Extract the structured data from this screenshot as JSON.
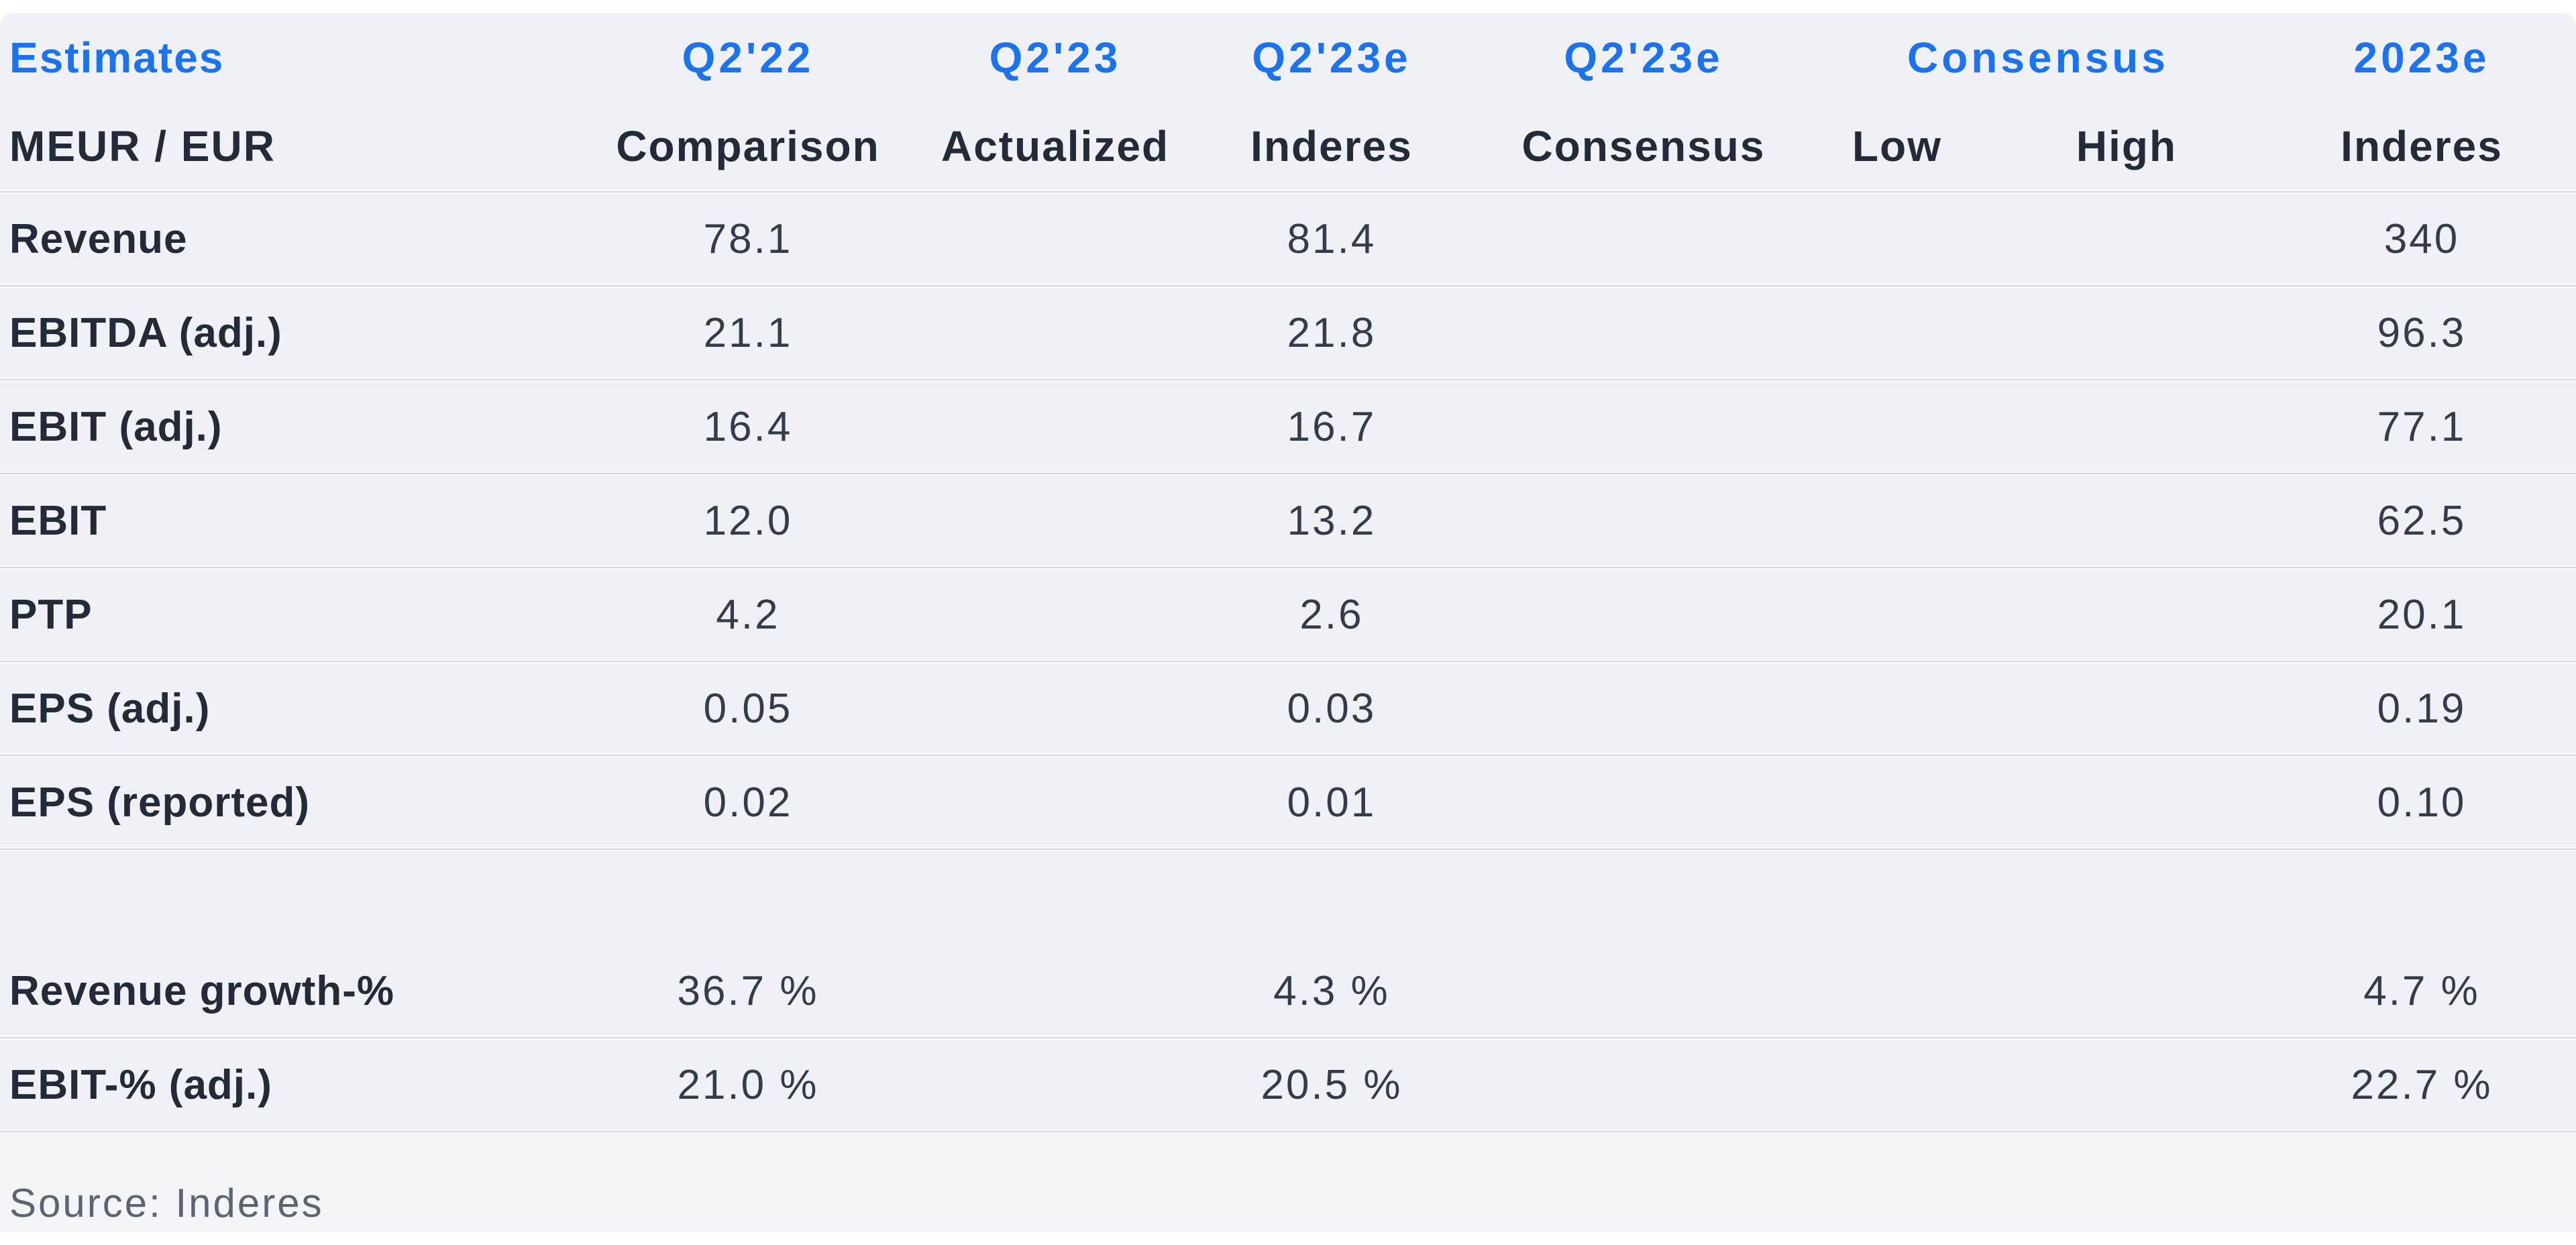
{
  "colors": {
    "accent_blue": "#1a74f2",
    "text_dark": "#232a38",
    "text_value": "#343c4a",
    "text_source": "#5c6470",
    "panel_bg": "#eff1f6",
    "divider_line": "#d2d6e0"
  },
  "header": {
    "title": "Estimates",
    "unit_label": "MEUR / EUR",
    "consensus_group_label": "Consensus",
    "top": [
      "Q2'22",
      "Q2'23",
      "Q2'23e",
      "Q2'23e",
      "2023e"
    ],
    "bottom": [
      "Comparison",
      "Actualized",
      "Inderes",
      "Consensus",
      "Low",
      "High",
      "Inderes"
    ]
  },
  "table": {
    "rows": [
      {
        "label": "Revenue",
        "cells": [
          "78.1",
          "",
          "81.4",
          "",
          "",
          "",
          "340"
        ]
      },
      {
        "label": "EBITDA (adj.)",
        "cells": [
          "21.1",
          "",
          "21.8",
          "",
          "",
          "",
          "96.3"
        ]
      },
      {
        "label": "EBIT (adj.)",
        "cells": [
          "16.4",
          "",
          "16.7",
          "",
          "",
          "",
          "77.1"
        ]
      },
      {
        "label": "EBIT",
        "cells": [
          "12.0",
          "",
          "13.2",
          "",
          "",
          "",
          "62.5"
        ]
      },
      {
        "label": "PTP",
        "cells": [
          "4.2",
          "",
          "2.6",
          "",
          "",
          "",
          "20.1"
        ]
      },
      {
        "label": "EPS (adj.)",
        "cells": [
          "0.05",
          "",
          "0.03",
          "",
          "",
          "",
          "0.19"
        ]
      },
      {
        "label": "EPS (reported)",
        "cells": [
          "0.02",
          "",
          "0.01",
          "",
          "",
          "",
          "0.10"
        ]
      }
    ],
    "growth_rows": [
      {
        "label": "Revenue growth-%",
        "cells": [
          "36.7 %",
          "",
          "4.3 %",
          "",
          "",
          "",
          "4.7 %"
        ]
      },
      {
        "label": "EBIT-% (adj.)",
        "cells": [
          "21.0 %",
          "",
          "20.5 %",
          "",
          "",
          "",
          "22.7 %"
        ]
      }
    ]
  },
  "footer": {
    "source": "Source: Inderes"
  },
  "chart_data": {
    "type": "table",
    "title": "Estimates",
    "unit": "MEUR / EUR",
    "columns": [
      "Q2'22 Comparison",
      "Q2'23 Actualized",
      "Q2'23e Inderes",
      "Q2'23e Consensus",
      "Consensus Low",
      "Consensus High",
      "2023e Inderes"
    ],
    "rows": [
      {
        "label": "Revenue",
        "values": [
          78.1,
          null,
          81.4,
          null,
          null,
          null,
          340
        ]
      },
      {
        "label": "EBITDA (adj.)",
        "values": [
          21.1,
          null,
          21.8,
          null,
          null,
          null,
          96.3
        ]
      },
      {
        "label": "EBIT (adj.)",
        "values": [
          16.4,
          null,
          16.7,
          null,
          null,
          null,
          77.1
        ]
      },
      {
        "label": "EBIT",
        "values": [
          12.0,
          null,
          13.2,
          null,
          null,
          null,
          62.5
        ]
      },
      {
        "label": "PTP",
        "values": [
          4.2,
          null,
          2.6,
          null,
          null,
          null,
          20.1
        ]
      },
      {
        "label": "EPS (adj.)",
        "values": [
          0.05,
          null,
          0.03,
          null,
          null,
          null,
          0.19
        ]
      },
      {
        "label": "EPS (reported)",
        "values": [
          0.02,
          null,
          0.01,
          null,
          null,
          null,
          0.1
        ]
      },
      {
        "label": "Revenue growth-%",
        "values": [
          "36.7 %",
          null,
          "4.3 %",
          null,
          null,
          null,
          "4.7 %"
        ]
      },
      {
        "label": "EBIT-% (adj.)",
        "values": [
          "21.0 %",
          null,
          "20.5 %",
          null,
          null,
          null,
          "22.7 %"
        ]
      }
    ],
    "source": "Source: Inderes"
  }
}
